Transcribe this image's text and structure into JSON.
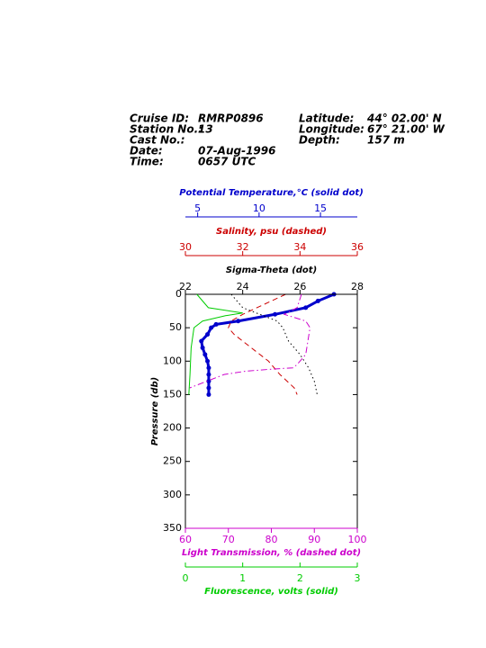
{
  "header": {
    "left": [
      {
        "label": "Cruise ID:",
        "value": "RMRP0896"
      },
      {
        "label": "Station No.:",
        "value": "13"
      },
      {
        "label": "Cast No.:"
      },
      {
        "label": "Date:",
        "value": "07-Aug-1996"
      },
      {
        "label": "Time:",
        "value": "0657 UTC"
      }
    ],
    "right": [
      {
        "label": "Latitude:",
        "value": "44° 02.00' N"
      },
      {
        "label": "Longitude:",
        "value": "67° 21.00' W"
      },
      {
        "label": "Depth:",
        "value": "157 m"
      }
    ]
  },
  "chart_data": {
    "type": "profile",
    "y_label": "Pressure (db)",
    "ylim": [
      0,
      350
    ],
    "yticks": [
      0,
      50,
      100,
      150,
      200,
      250,
      300,
      350
    ],
    "axes": [
      {
        "label": "Potential Temperature,°C (solid dot)",
        "color": "#0000cc",
        "style": "solid-dot",
        "position": "top",
        "xlim": [
          4,
          18
        ],
        "xticks": [
          5,
          10,
          15
        ],
        "pressure": [
          0,
          10,
          20,
          30,
          40,
          45,
          50,
          60,
          70,
          80,
          90,
          100,
          110,
          120,
          130,
          140,
          150
        ],
        "values": [
          16.1,
          14.8,
          13.8,
          11.3,
          8.3,
          6.5,
          6.1,
          5.8,
          5.3,
          5.4,
          5.6,
          5.8,
          5.9,
          5.9,
          5.9,
          5.9,
          5.9
        ]
      },
      {
        "label": "Salinity, psu (dashed)",
        "color": "#cc0000",
        "style": "dashed",
        "position": "top",
        "xlim": [
          30,
          36
        ],
        "xticks": [
          30,
          32,
          34,
          36
        ],
        "pressure": [
          0,
          10,
          20,
          30,
          40,
          50,
          60,
          80,
          100,
          120,
          140,
          150
        ],
        "values": [
          33.5,
          33.0,
          32.5,
          32.0,
          31.6,
          31.5,
          31.7,
          32.3,
          32.9,
          33.3,
          33.8,
          33.9
        ]
      },
      {
        "label": "Sigma-Theta (dot)",
        "color": "#000000",
        "style": "dotted",
        "position": "top",
        "xlim": [
          22,
          28
        ],
        "xticks": [
          22,
          24,
          26,
          28
        ],
        "pressure": [
          0,
          20,
          30,
          40,
          50,
          70,
          90,
          110,
          130,
          150
        ],
        "values": [
          23.6,
          24.0,
          24.6,
          25.2,
          25.4,
          25.6,
          26.0,
          26.3,
          26.5,
          26.6
        ]
      },
      {
        "label": "Light Transmission, % (dashed dot)",
        "color": "#cc00cc",
        "style": "dashdot",
        "position": "bottom",
        "xlim": [
          60,
          100
        ],
        "xticks": [
          60,
          70,
          80,
          90,
          100
        ],
        "pressure": [
          0,
          20,
          30,
          40,
          50,
          70,
          90,
          105,
          110,
          112,
          115,
          120,
          130,
          140
        ],
        "values": [
          87,
          86,
          83,
          88,
          89,
          88.5,
          88,
          86,
          85,
          80,
          74,
          69,
          65,
          61
        ]
      },
      {
        "label": "Fluorescence, volts (solid)",
        "color": "#00cc00",
        "style": "solid",
        "position": "bottom",
        "xlim": [
          0,
          3
        ],
        "xticks": [
          0,
          1,
          2,
          3
        ],
        "pressure": [
          0,
          20,
          28,
          32,
          40,
          50,
          80,
          120,
          150
        ],
        "values": [
          0.2,
          0.4,
          1.0,
          0.7,
          0.3,
          0.15,
          0.1,
          0.08,
          0.06
        ]
      }
    ]
  }
}
